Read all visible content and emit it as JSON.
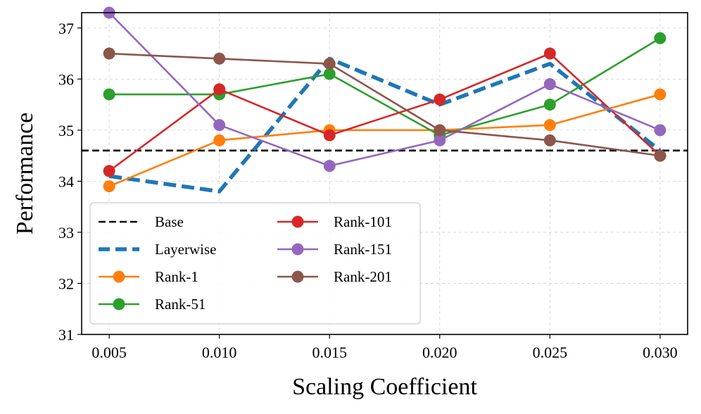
{
  "chart_data": {
    "type": "line",
    "xlabel": "Scaling Coefficient",
    "ylabel": "Performance",
    "x_ticks": [
      "0.005",
      "0.010",
      "0.015",
      "0.020",
      "0.025",
      "0.030"
    ],
    "y_ticks": [
      "31",
      "32",
      "33",
      "34",
      "35",
      "36",
      "37"
    ],
    "x": [
      0.005,
      0.01,
      0.015,
      0.02,
      0.025,
      0.03
    ],
    "xlim": [
      0.00375,
      0.03125
    ],
    "ylim": [
      31,
      37.3
    ],
    "grid": true,
    "legend_position": "lower-left",
    "baseline": {
      "name": "Base",
      "value": 34.6,
      "color": "#000000"
    },
    "series": [
      {
        "name": "Layerwise",
        "color": "#1f77b4",
        "dashed": true,
        "markers": false,
        "values": [
          34.1,
          33.8,
          36.4,
          35.5,
          36.3,
          34.6
        ]
      },
      {
        "name": "Rank-1",
        "color": "#ff7f0e",
        "dashed": false,
        "markers": true,
        "values": [
          33.9,
          34.8,
          35.0,
          35.0,
          35.1,
          35.7
        ]
      },
      {
        "name": "Rank-51",
        "color": "#2ca02c",
        "dashed": false,
        "markers": true,
        "values": [
          35.7,
          35.7,
          36.1,
          34.9,
          35.5,
          36.8
        ]
      },
      {
        "name": "Rank-101",
        "color": "#d62728",
        "dashed": false,
        "markers": true,
        "values": [
          34.2,
          35.8,
          34.9,
          35.6,
          36.5,
          34.5
        ]
      },
      {
        "name": "Rank-151",
        "color": "#9467bd",
        "dashed": false,
        "markers": true,
        "values": [
          37.3,
          35.1,
          34.3,
          34.8,
          35.9,
          35.0
        ]
      },
      {
        "name": "Rank-201",
        "color": "#8c564b",
        "dashed": false,
        "markers": true,
        "values": [
          36.5,
          36.4,
          36.3,
          35.0,
          34.8,
          34.5
        ]
      }
    ]
  }
}
